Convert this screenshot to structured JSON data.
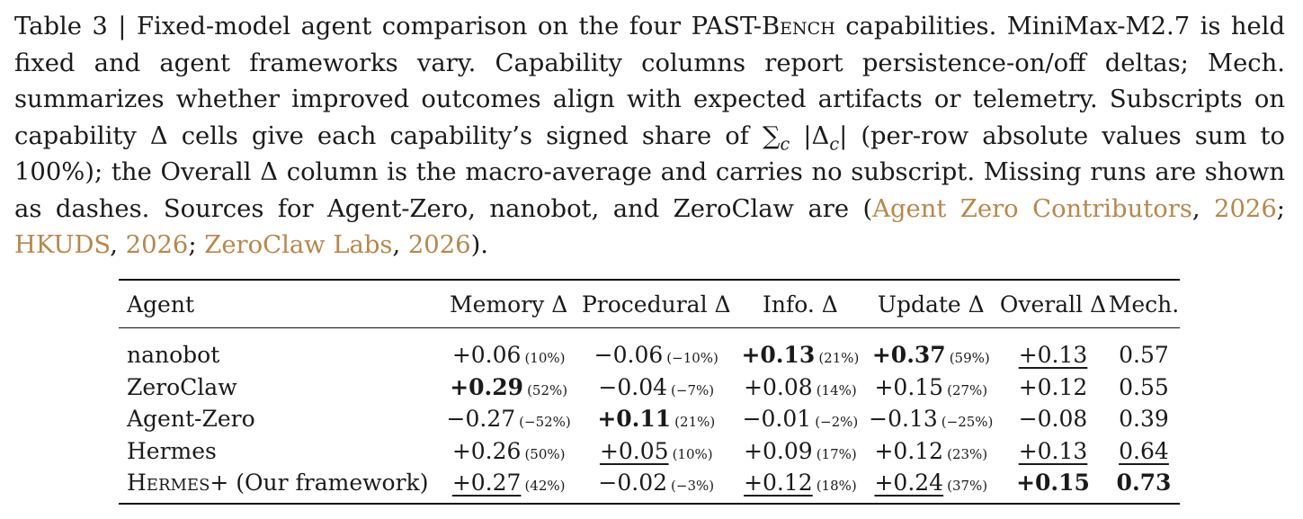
{
  "caption": {
    "p1": "Table 3 | Fixed-model agent comparison on the four PAST-",
    "bench_sc": "Bench",
    "p2": " capabilities.  MiniMax-M2.7 is held fixed and agent frameworks vary. Capability columns report persistence-on/off deltas; Mech. summarizes whether improved outcomes align with expected artifacts or telemetry. Subscripts on capability Δ cells give each capability’s signed share of ∑",
    "sub_c": "c",
    "p3": " |Δ",
    "sub_c2": "c",
    "p4": "| (per-row absolute values sum to 100%); the Overall Δ column is the macro-average and carries no subscript. Missing runs are shown as dashes. Sources for Agent-Zero, nanobot, and ZeroClaw are (",
    "cite1": "Agent Zero Contributors",
    "sep1": ", ",
    "year1": "2026",
    "sep2": "; ",
    "cite2": "HKUDS",
    "sep3": ", ",
    "year2": "2026",
    "sep4": "; ",
    "cite3": "ZeroClaw Labs",
    "sep5": ", ",
    "year3": "2026",
    "end": ")."
  },
  "table": {
    "headers": [
      "Agent",
      "Memory Δ",
      "Procedural Δ",
      "Info. Δ",
      "Update Δ",
      "Overall Δ",
      "Mech."
    ],
    "rows": [
      {
        "agent": "nanobot",
        "memory": {
          "v": "+0.06",
          "s": "(10%)"
        },
        "procedural": {
          "v": "−0.06",
          "s": "(−10%)"
        },
        "info": {
          "v": "+0.13",
          "s": "(21%)"
        },
        "update": {
          "v": "+0.37",
          "s": "(59%)"
        },
        "overall": "+0.13",
        "mech": "0.57"
      },
      {
        "agent": "ZeroClaw",
        "memory": {
          "v": "+0.29",
          "s": "(52%)"
        },
        "procedural": {
          "v": "−0.04",
          "s": "(−7%)"
        },
        "info": {
          "v": "+0.08",
          "s": "(14%)"
        },
        "update": {
          "v": "+0.15",
          "s": "(27%)"
        },
        "overall": "+0.12",
        "mech": "0.55"
      },
      {
        "agent": "Agent-Zero",
        "memory": {
          "v": "−0.27",
          "s": "(−52%)"
        },
        "procedural": {
          "v": "+0.11",
          "s": "(21%)"
        },
        "info": {
          "v": "−0.01",
          "s": "(−2%)"
        },
        "update": {
          "v": "−0.13",
          "s": "(−25%)"
        },
        "overall": "−0.08",
        "mech": "0.39"
      },
      {
        "agent": "Hermes",
        "memory": {
          "v": "+0.26",
          "s": "(50%)"
        },
        "procedural": {
          "v": "+0.05",
          "s": "(10%)"
        },
        "info": {
          "v": "+0.09",
          "s": "(17%)"
        },
        "update": {
          "v": "+0.12",
          "s": "(23%)"
        },
        "overall": "+0.13",
        "mech": "0.64"
      },
      {
        "agent_sc": "Hermes",
        "agent_rest": "+ (Our framework)",
        "memory": {
          "v": "+0.27",
          "s": "(42%)"
        },
        "procedural": {
          "v": "−0.02",
          "s": "(−3%)"
        },
        "info": {
          "v": "+0.12",
          "s": "(18%)"
        },
        "update": {
          "v": "+0.24",
          "s": "(37%)"
        },
        "overall": "+0.15",
        "mech": "0.73"
      }
    ]
  }
}
